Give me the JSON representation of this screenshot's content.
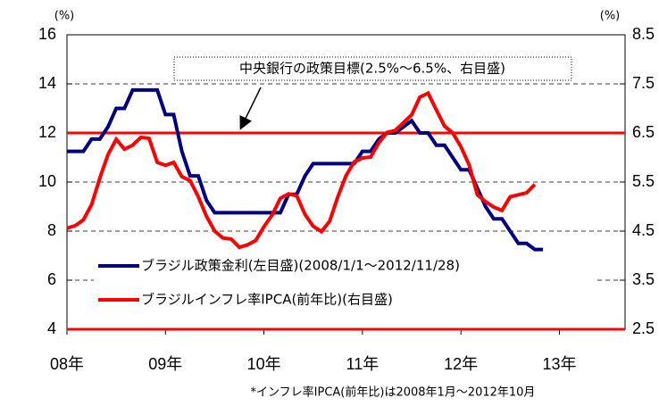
{
  "chart_data": {
    "type": "line",
    "y_unit": "(%)",
    "y2_unit": "(%)",
    "annotation": "中央銀行の政策目標(2.5%～6.5%、右目盛)",
    "note": "*インフレ率IPCA(前年比)は2008年1月～2012年10月",
    "xlim": [
      0,
      68
    ],
    "xticks": [
      {
        "value": 0,
        "label": "08年"
      },
      {
        "value": 12,
        "label": "09年"
      },
      {
        "value": 24,
        "label": "10年"
      },
      {
        "value": 36,
        "label": "11年"
      },
      {
        "value": 48,
        "label": "12年"
      },
      {
        "value": 60,
        "label": "13年"
      }
    ],
    "ylim": [
      4,
      16
    ],
    "yticks": [
      4,
      6,
      8,
      10,
      12,
      14,
      16
    ],
    "y2lim": [
      2.5,
      8.5
    ],
    "y2ticks": [
      2.5,
      3.5,
      4.5,
      5.5,
      6.5,
      7.5,
      8.5
    ],
    "grid": true,
    "target_band": {
      "values": [
        2.5,
        6.5
      ],
      "color": "#ff0000",
      "axis": "y2"
    },
    "series": [
      {
        "name": "ブラジル政策金利(左目盛)(2008/1/1～2012/11/28)",
        "color": "#000080",
        "axis": "y",
        "x": [
          0,
          1,
          2,
          3,
          4,
          5,
          6,
          7,
          8,
          9,
          10,
          11,
          12,
          13,
          14,
          15,
          16,
          17,
          18,
          19,
          20,
          21,
          22,
          23,
          24,
          25,
          26,
          27,
          28,
          29,
          30,
          31,
          32,
          33,
          34,
          35,
          36,
          37,
          38,
          39,
          40,
          41,
          42,
          43,
          44,
          45,
          46,
          47,
          48,
          49,
          50,
          51,
          52,
          53,
          54,
          55,
          56,
          57,
          58
        ],
        "values": [
          11.25,
          11.25,
          11.25,
          11.75,
          11.75,
          12.25,
          13,
          13,
          13.75,
          13.75,
          13.75,
          13.75,
          12.75,
          12.75,
          11.25,
          10.25,
          10.25,
          9.25,
          8.75,
          8.75,
          8.75,
          8.75,
          8.75,
          8.75,
          8.75,
          8.75,
          8.75,
          9.5,
          9.5,
          10.25,
          10.75,
          10.75,
          10.75,
          10.75,
          10.75,
          10.75,
          11.25,
          11.25,
          11.75,
          12,
          12,
          12.25,
          12.5,
          12,
          12,
          11.5,
          11.5,
          11,
          10.5,
          10.5,
          9.75,
          9,
          8.5,
          8.5,
          8,
          7.5,
          7.5,
          7.25,
          7.25
        ]
      },
      {
        "name": "ブラジルインフレ率IPCA(前年比)(右目盛)",
        "color": "#ff0000",
        "axis": "y2",
        "x": [
          0,
          1,
          2,
          3,
          4,
          5,
          6,
          7,
          8,
          9,
          10,
          11,
          12,
          13,
          14,
          15,
          16,
          17,
          18,
          19,
          20,
          21,
          22,
          23,
          24,
          25,
          26,
          27,
          28,
          29,
          30,
          31,
          32,
          33,
          34,
          35,
          36,
          37,
          38,
          39,
          40,
          41,
          42,
          43,
          44,
          45,
          46,
          47,
          48,
          49,
          50,
          51,
          52,
          53,
          54,
          55,
          56,
          57
        ],
        "values": [
          4.56,
          4.61,
          4.73,
          5.04,
          5.58,
          6.06,
          6.37,
          6.17,
          6.25,
          6.41,
          6.39,
          5.9,
          5.84,
          5.9,
          5.61,
          5.53,
          5.2,
          4.8,
          4.5,
          4.36,
          4.34,
          4.17,
          4.22,
          4.31,
          4.59,
          4.83,
          5.17,
          5.26,
          5.22,
          4.84,
          4.6,
          4.49,
          4.7,
          5.2,
          5.63,
          5.91,
          5.99,
          6.01,
          6.3,
          6.51,
          6.55,
          6.71,
          6.87,
          7.23,
          7.31,
          6.97,
          6.64,
          6.5,
          6.22,
          5.85,
          5.24,
          5.1,
          4.99,
          4.92,
          5.2,
          5.24,
          5.28,
          5.45
        ]
      }
    ]
  }
}
